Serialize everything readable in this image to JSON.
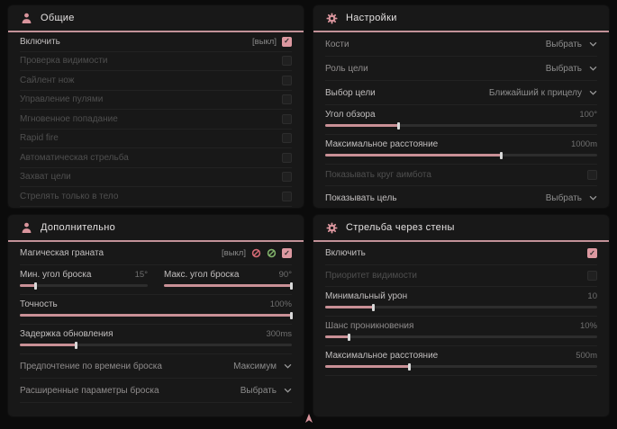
{
  "window": {
    "background": "#0b0b0b",
    "panel_background": "#181818",
    "accent": "#d9949c"
  },
  "general": {
    "title": "Общие",
    "enable": {
      "label": "Включить",
      "tag": "[выкл]",
      "checked": true
    },
    "items": [
      "Проверка видимости",
      "Сайлент нож",
      "Управление пулями",
      "Мгновенное попадание",
      "Rapid fire",
      "Автоматическая стрельба",
      "Захват цели",
      "Стрелять только в тело"
    ]
  },
  "settings": {
    "title": "Настройки",
    "bones": {
      "label": "Кости",
      "value": "Выбрать"
    },
    "target_role": {
      "label": "Роль цели",
      "value": "Выбрать"
    },
    "target_choice": {
      "label": "Выбор цели",
      "value": "Ближайший к прицелу"
    },
    "fov": {
      "label": "Угол обзора",
      "value": "100°",
      "percent": 27
    },
    "max_distance": {
      "label": "Максимальное расстояние",
      "value": "1000m",
      "percent": 65
    },
    "show_aim_circle": {
      "label": "Показывать круг аимбота",
      "checked": false
    },
    "show_target": {
      "label": "Показывать цель",
      "value": "Выбрать"
    }
  },
  "additional": {
    "title": "Дополнительно",
    "magic_grenade": {
      "label": "Магическая граната",
      "tag": "[выкл]",
      "checked": true
    },
    "min_throw_angle": {
      "label": "Мин. угол броска",
      "value": "15°",
      "percent": 13
    },
    "max_throw_angle": {
      "label": "Макс. угол броска",
      "value": "90°",
      "percent": 100
    },
    "accuracy": {
      "label": "Точность",
      "value": "100%",
      "percent": 100
    },
    "update_delay": {
      "label": "Задержка обновления",
      "value": "300ms",
      "percent": 21
    },
    "throw_time_pref": {
      "label": "Предпочтение по времени броска",
      "value": "Максимум"
    },
    "advanced_throw": {
      "label": "Расширенные параметры броска",
      "value": "Выбрать"
    }
  },
  "wallbang": {
    "title": "Стрельба через стены",
    "enable": {
      "label": "Включить",
      "checked": true
    },
    "visibility_priority": {
      "label": "Приоритет видимости",
      "checked": false
    },
    "min_damage": {
      "label": "Минимальный урон",
      "value": "10",
      "percent": 18
    },
    "penetration_chance": {
      "label": "Шанс проникновения",
      "value": "10%",
      "percent": 9
    },
    "max_distance": {
      "label": "Максимальное расстояние",
      "value": "500m",
      "percent": 31
    }
  }
}
